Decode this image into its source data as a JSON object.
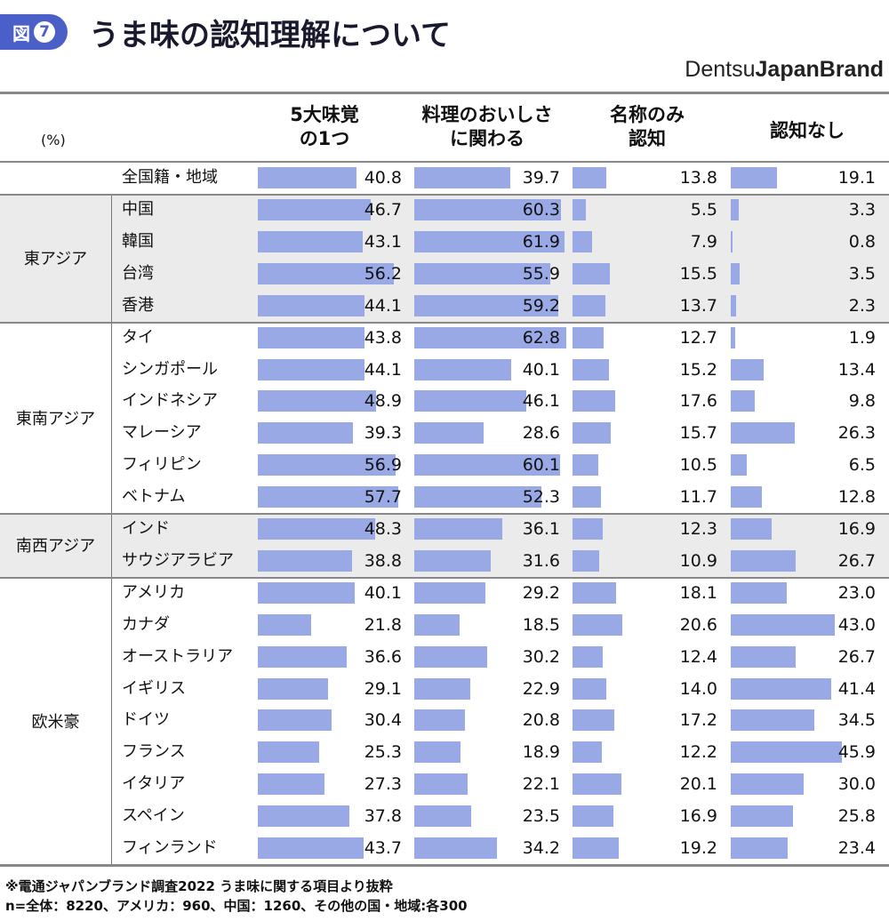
{
  "figure_label": "図",
  "figure_number": "7",
  "title": "うま味の認知理解について",
  "brand": {
    "light": "Dentsu",
    "bold": "JapanBrand"
  },
  "chart_data": {
    "type": "table",
    "unit": "(%)",
    "columns": [
      "5大味覚\nの1つ",
      "料理のおいしさ\nに関わる",
      "名称のみ\n認知",
      "認知なし"
    ],
    "bar_color": "#99a9e6",
    "total": {
      "label": "全国籍・地域",
      "values": [
        40.8,
        39.7,
        13.8,
        19.1
      ]
    },
    "groups": [
      {
        "name": "東アジア",
        "shaded": true,
        "rows": [
          {
            "label": "中国",
            "values": [
              46.7,
              60.3,
              5.5,
              3.3
            ]
          },
          {
            "label": "韓国",
            "values": [
              43.1,
              61.9,
              7.9,
              0.8
            ]
          },
          {
            "label": "台湾",
            "values": [
              56.2,
              55.9,
              15.5,
              3.5
            ]
          },
          {
            "label": "香港",
            "values": [
              44.1,
              59.2,
              13.7,
              2.3
            ]
          }
        ]
      },
      {
        "name": "東南アジア",
        "shaded": false,
        "rows": [
          {
            "label": "タイ",
            "values": [
              43.8,
              62.8,
              12.7,
              1.9
            ]
          },
          {
            "label": "シンガポール",
            "values": [
              44.1,
              40.1,
              15.2,
              13.4
            ]
          },
          {
            "label": "インドネシア",
            "values": [
              48.9,
              46.1,
              17.6,
              9.8
            ]
          },
          {
            "label": "マレーシア",
            "values": [
              39.3,
              28.6,
              15.7,
              26.3
            ]
          },
          {
            "label": "フィリピン",
            "values": [
              56.9,
              60.1,
              10.5,
              6.5
            ]
          },
          {
            "label": "ベトナム",
            "values": [
              57.7,
              52.3,
              11.7,
              12.8
            ]
          }
        ]
      },
      {
        "name": "南西アジア",
        "shaded": true,
        "rows": [
          {
            "label": "インド",
            "values": [
              48.3,
              36.1,
              12.3,
              16.9
            ]
          },
          {
            "label": "サウジアラビア",
            "values": [
              38.8,
              31.6,
              10.9,
              26.7
            ]
          }
        ]
      },
      {
        "name": "欧米豪",
        "shaded": false,
        "rows": [
          {
            "label": "アメリカ",
            "values": [
              40.1,
              29.2,
              18.1,
              23.0
            ]
          },
          {
            "label": "カナダ",
            "values": [
              21.8,
              18.5,
              20.6,
              43.0
            ]
          },
          {
            "label": "オーストラリア",
            "values": [
              36.6,
              30.2,
              12.4,
              26.7
            ]
          },
          {
            "label": "イギリス",
            "values": [
              29.1,
              22.9,
              14.0,
              41.4
            ]
          },
          {
            "label": "ドイツ",
            "values": [
              30.4,
              20.8,
              17.2,
              34.5
            ]
          },
          {
            "label": "フランス",
            "values": [
              25.3,
              18.9,
              12.2,
              45.9
            ]
          },
          {
            "label": "イタリア",
            "values": [
              27.3,
              22.1,
              20.1,
              30.0
            ]
          },
          {
            "label": "スペイン",
            "values": [
              37.8,
              23.5,
              16.9,
              25.8
            ]
          },
          {
            "label": "フィンランド",
            "values": [
              43.7,
              34.2,
              19.2,
              23.4
            ]
          }
        ]
      }
    ]
  },
  "footnotes": [
    "※電通ジャパンブランド調査2022 うま味に関する項目より抜粋",
    "n=全体：8220、アメリカ：960、中国：1260、その他の国・地域:各300"
  ]
}
